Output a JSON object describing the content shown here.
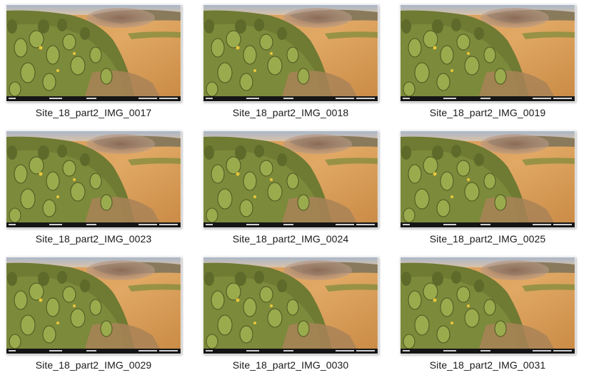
{
  "files": [
    {
      "name": "Site_18_part2_IMG_0017"
    },
    {
      "name": "Site_18_part2_IMG_0018"
    },
    {
      "name": "Site_18_part2_IMG_0019"
    },
    {
      "name": "Site_18_part2_IMG_0023"
    },
    {
      "name": "Site_18_part2_IMG_0024"
    },
    {
      "name": "Site_18_part2_IMG_0025"
    },
    {
      "name": "Site_18_part2_IMG_0029"
    },
    {
      "name": "Site_18_part2_IMG_0030"
    },
    {
      "name": "Site_18_part2_IMG_0031"
    }
  ]
}
